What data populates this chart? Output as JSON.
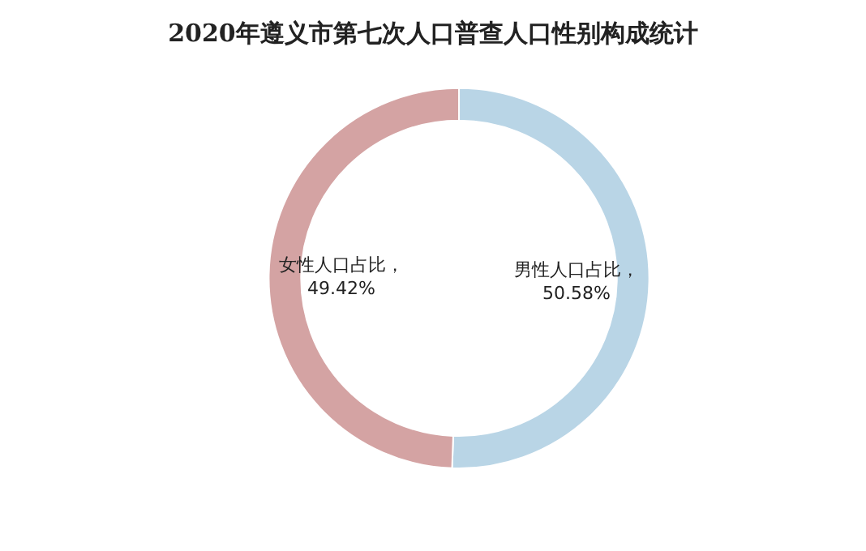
{
  "chart_data": {
    "type": "donut",
    "title": "2020年遵义市第七次人口普查人口性别构成统计",
    "categories": [
      "男性人口占比",
      "女性人口占比"
    ],
    "values": [
      50.58,
      49.42
    ],
    "colors": [
      "#b9d5e6",
      "#d4a3a3"
    ],
    "value_labels": [
      "，\n50.58%",
      "，\n49.42%"
    ],
    "legend": false
  }
}
